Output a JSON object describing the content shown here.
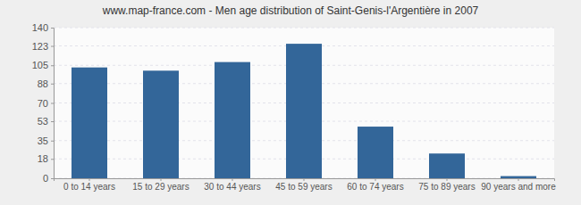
{
  "chart_data": {
    "type": "bar",
    "title": "www.map-france.com - Men age distribution of Saint-Genis-l'Argentière in 2007",
    "categories": [
      "0 to 14 years",
      "15 to 29 years",
      "30 to 44 years",
      "45 to 59 years",
      "60 to 74 years",
      "75 to 89 years",
      "90 years and more"
    ],
    "values": [
      103,
      100,
      108,
      125,
      48,
      23,
      2
    ],
    "color": "#336699",
    "ylim": [
      0,
      140
    ],
    "yticks": [
      0,
      18,
      35,
      53,
      70,
      88,
      105,
      123,
      140
    ],
    "grid": true
  }
}
